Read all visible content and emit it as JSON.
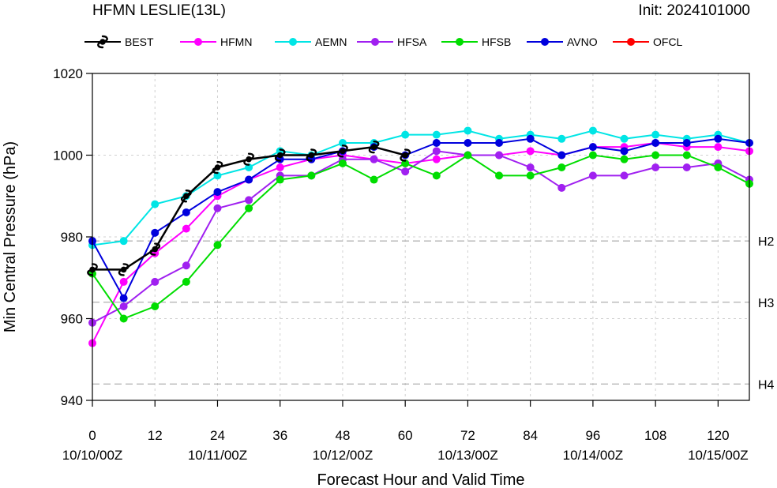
{
  "chart_data": {
    "type": "line",
    "title": "HFMN LESLIE(13L)",
    "init_label": "Init: 2024101000",
    "xlabel": "Forecast Hour and Valid Time",
    "ylabel": "Min Central Pressure (hPa)",
    "xlim": [
      0,
      126
    ],
    "ylim": [
      940,
      1020
    ],
    "grid": true,
    "legend_position": "top",
    "x_ticks": [
      0,
      12,
      24,
      36,
      48,
      60,
      72,
      84,
      96,
      108,
      120
    ],
    "x_date_labels": [
      {
        "x": 0,
        "label": "10/10/00Z"
      },
      {
        "x": 24,
        "label": "10/11/00Z"
      },
      {
        "x": 48,
        "label": "10/12/00Z"
      },
      {
        "x": 72,
        "label": "10/13/00Z"
      },
      {
        "x": 96,
        "label": "10/14/00Z"
      },
      {
        "x": 120,
        "label": "10/15/00Z"
      }
    ],
    "y_ticks": [
      940,
      960,
      980,
      1000,
      1020
    ],
    "reference_lines": [
      {
        "label": "H2",
        "value": 979
      },
      {
        "label": "H3",
        "value": 964
      },
      {
        "label": "H4",
        "value": 944
      }
    ],
    "series": [
      {
        "name": "BEST",
        "color": "#000000",
        "marker": "hurricane-symbol",
        "points": [
          [
            0,
            972
          ],
          [
            6,
            972
          ],
          [
            12,
            977
          ],
          [
            18,
            990
          ],
          [
            24,
            997
          ],
          [
            30,
            999
          ],
          [
            36,
            1000
          ],
          [
            42,
            1000
          ],
          [
            48,
            1001
          ],
          [
            54,
            1002
          ],
          [
            60,
            1000
          ]
        ]
      },
      {
        "name": "HFMN",
        "color": "#ff00ff",
        "marker": "circle",
        "points": [
          [
            0,
            954
          ],
          [
            6,
            969
          ],
          [
            12,
            976
          ],
          [
            18,
            982
          ],
          [
            24,
            990
          ],
          [
            30,
            994
          ],
          [
            36,
            997
          ],
          [
            42,
            999
          ],
          [
            48,
            1000
          ],
          [
            54,
            999
          ],
          [
            60,
            998
          ],
          [
            66,
            999
          ],
          [
            72,
            1000
          ],
          [
            78,
            1000
          ],
          [
            84,
            1001
          ],
          [
            90,
            1000
          ],
          [
            96,
            1002
          ],
          [
            102,
            1002
          ],
          [
            108,
            1003
          ],
          [
            114,
            1002
          ],
          [
            120,
            1002
          ],
          [
            126,
            1001
          ]
        ]
      },
      {
        "name": "AEMN",
        "color": "#00e5e5",
        "marker": "circle",
        "points": [
          [
            0,
            978
          ],
          [
            6,
            979
          ],
          [
            12,
            988
          ],
          [
            18,
            990
          ],
          [
            24,
            995
          ],
          [
            30,
            997
          ],
          [
            36,
            1001
          ],
          [
            42,
            1000
          ],
          [
            48,
            1003
          ],
          [
            54,
            1003
          ],
          [
            60,
            1005
          ],
          [
            66,
            1005
          ],
          [
            72,
            1006
          ],
          [
            78,
            1004
          ],
          [
            84,
            1005
          ],
          [
            90,
            1004
          ],
          [
            96,
            1006
          ],
          [
            102,
            1004
          ],
          [
            108,
            1005
          ],
          [
            114,
            1004
          ],
          [
            120,
            1005
          ],
          [
            126,
            1003
          ]
        ]
      },
      {
        "name": "HFSA",
        "color": "#a020f0",
        "marker": "circle",
        "points": [
          [
            0,
            959
          ],
          [
            6,
            963
          ],
          [
            12,
            969
          ],
          [
            18,
            973
          ],
          [
            24,
            987
          ],
          [
            30,
            989
          ],
          [
            36,
            995
          ],
          [
            42,
            995
          ],
          [
            48,
            999
          ],
          [
            54,
            999
          ],
          [
            60,
            996
          ],
          [
            66,
            1001
          ],
          [
            72,
            1000
          ],
          [
            78,
            1000
          ],
          [
            84,
            997
          ],
          [
            90,
            992
          ],
          [
            96,
            995
          ],
          [
            102,
            995
          ],
          [
            108,
            997
          ],
          [
            114,
            997
          ],
          [
            120,
            998
          ],
          [
            126,
            994
          ]
        ]
      },
      {
        "name": "HFSB",
        "color": "#00dd00",
        "marker": "circle",
        "points": [
          [
            0,
            971
          ],
          [
            6,
            960
          ],
          [
            12,
            963
          ],
          [
            18,
            969
          ],
          [
            24,
            978
          ],
          [
            30,
            987
          ],
          [
            36,
            994
          ],
          [
            42,
            995
          ],
          [
            48,
            998
          ],
          [
            54,
            994
          ],
          [
            60,
            998
          ],
          [
            66,
            995
          ],
          [
            72,
            1000
          ],
          [
            78,
            995
          ],
          [
            84,
            995
          ],
          [
            90,
            997
          ],
          [
            96,
            1000
          ],
          [
            102,
            999
          ],
          [
            108,
            1000
          ],
          [
            114,
            1000
          ],
          [
            120,
            997
          ],
          [
            126,
            993
          ]
        ]
      },
      {
        "name": "AVNO",
        "color": "#0000dd",
        "marker": "circle",
        "points": [
          [
            0,
            979
          ],
          [
            6,
            965
          ],
          [
            12,
            981
          ],
          [
            18,
            986
          ],
          [
            24,
            991
          ],
          [
            30,
            994
          ],
          [
            36,
            999
          ],
          [
            42,
            999
          ],
          [
            48,
            1001
          ],
          [
            54,
            1002
          ],
          [
            60,
            1000
          ],
          [
            66,
            1003
          ],
          [
            72,
            1003
          ],
          [
            78,
            1003
          ],
          [
            84,
            1004
          ],
          [
            90,
            1000
          ],
          [
            96,
            1002
          ],
          [
            102,
            1001
          ],
          [
            108,
            1003
          ],
          [
            114,
            1003
          ],
          [
            120,
            1004
          ],
          [
            126,
            1003
          ]
        ]
      },
      {
        "name": "OFCL",
        "color": "#ff0000",
        "marker": "circle",
        "points": []
      }
    ]
  }
}
